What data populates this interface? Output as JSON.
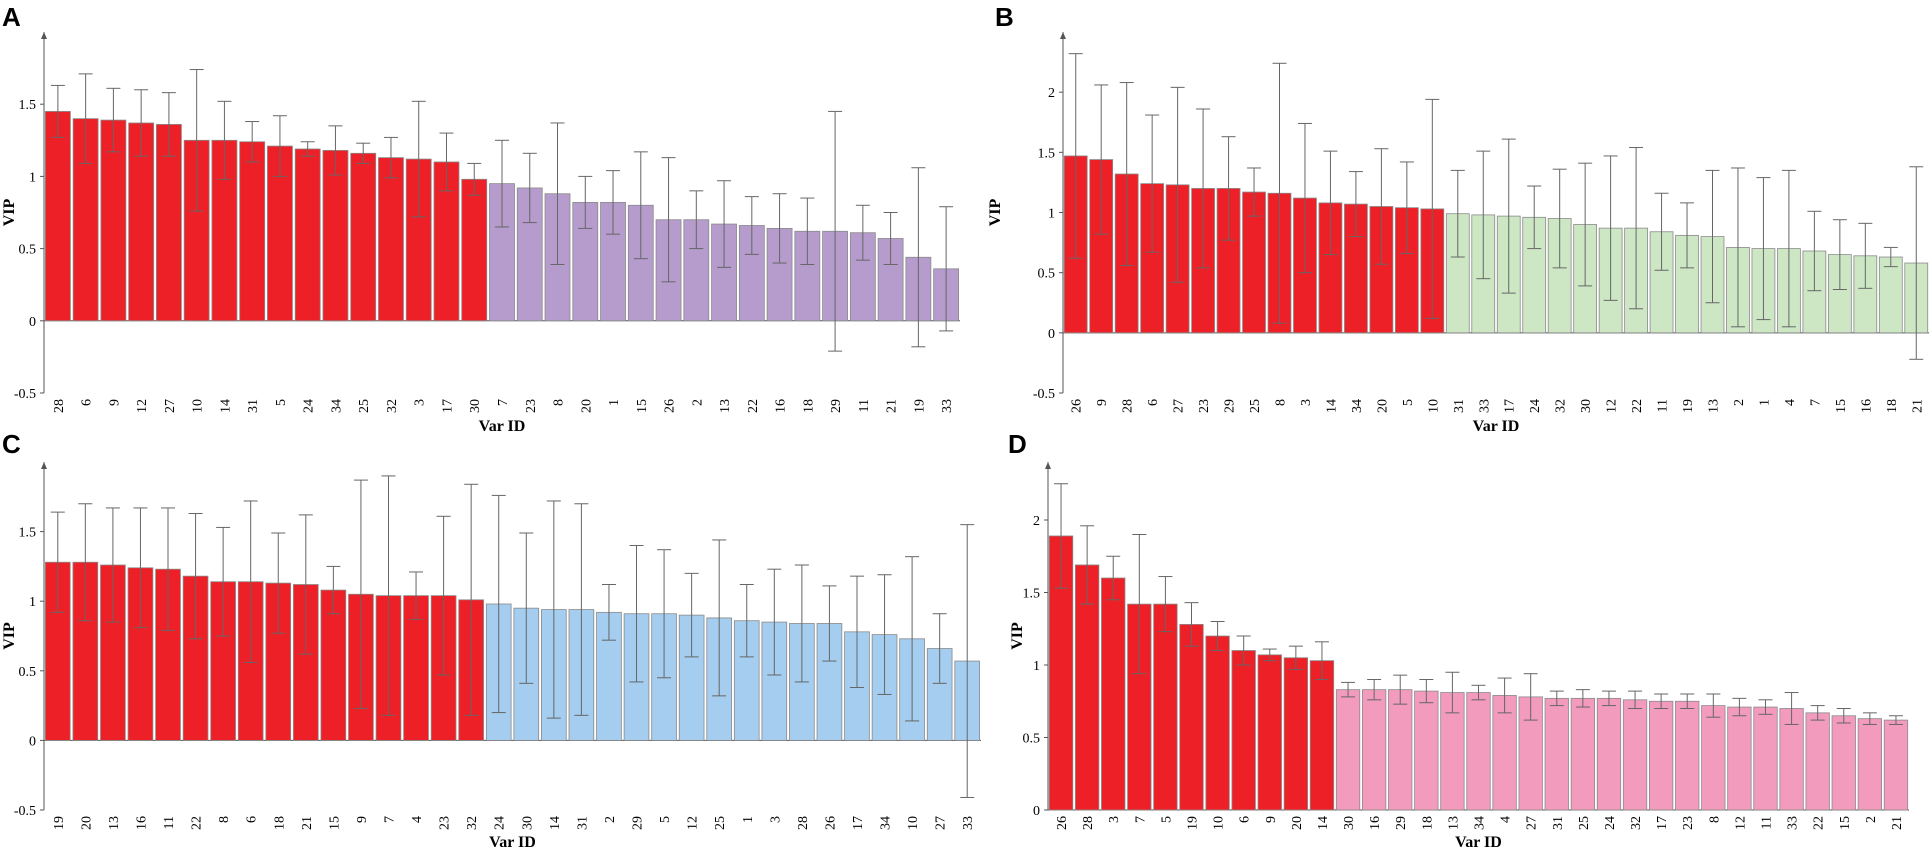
{
  "colors": {
    "highlight": "#ee2027",
    "A": "#b59ccc",
    "B": "#cde7c5",
    "C": "#a4cdef",
    "D": "#f29bbd"
  },
  "chart_data": [
    {
      "panel": "A",
      "type": "bar",
      "xlabel": "Var ID",
      "ylabel": "VIP",
      "ylim": [
        -0.5,
        2.0
      ],
      "yticks": [
        -0.5,
        0,
        0.5,
        1,
        1.5
      ],
      "highlight_count": 16,
      "categories": [
        "28",
        "6",
        "9",
        "12",
        "27",
        "10",
        "14",
        "31",
        "5",
        "24",
        "34",
        "25",
        "32",
        "3",
        "17",
        "30",
        "7",
        "23",
        "8",
        "20",
        "1",
        "15",
        "26",
        "2",
        "13",
        "22",
        "16",
        "18",
        "29",
        "11",
        "21",
        "19",
        "33"
      ],
      "values": [
        1.45,
        1.4,
        1.39,
        1.37,
        1.36,
        1.25,
        1.25,
        1.24,
        1.21,
        1.19,
        1.18,
        1.16,
        1.13,
        1.12,
        1.1,
        0.98,
        0.95,
        0.92,
        0.88,
        0.82,
        0.82,
        0.8,
        0.7,
        0.7,
        0.67,
        0.66,
        0.64,
        0.62,
        0.62,
        0.61,
        0.57,
        0.44,
        0.36
      ],
      "errors": [
        0.18,
        0.31,
        0.22,
        0.23,
        0.22,
        0.49,
        0.27,
        0.14,
        0.21,
        0.05,
        0.17,
        0.07,
        0.14,
        0.4,
        0.2,
        0.11,
        0.3,
        0.24,
        0.49,
        0.18,
        0.22,
        0.37,
        0.43,
        0.2,
        0.3,
        0.2,
        0.24,
        0.23,
        0.83,
        0.19,
        0.18,
        0.62,
        0.43
      ]
    },
    {
      "panel": "B",
      "type": "bar",
      "xlabel": "Var ID",
      "ylabel": "VIP",
      "ylim": [
        -0.5,
        2.5
      ],
      "yticks": [
        -0.5,
        0,
        0.5,
        1,
        1.5,
        2
      ],
      "highlight_count": 15,
      "categories": [
        "26",
        "9",
        "28",
        "6",
        "27",
        "23",
        "29",
        "25",
        "8",
        "3",
        "14",
        "34",
        "20",
        "5",
        "10",
        "31",
        "33",
        "17",
        "24",
        "32",
        "30",
        "12",
        "22",
        "11",
        "19",
        "13",
        "2",
        "1",
        "4",
        "7",
        "15",
        "16",
        "18",
        "21"
      ],
      "values": [
        1.47,
        1.44,
        1.32,
        1.24,
        1.23,
        1.2,
        1.2,
        1.17,
        1.16,
        1.12,
        1.08,
        1.07,
        1.05,
        1.04,
        1.03,
        0.99,
        0.98,
        0.97,
        0.96,
        0.95,
        0.9,
        0.87,
        0.87,
        0.84,
        0.81,
        0.8,
        0.71,
        0.7,
        0.7,
        0.68,
        0.65,
        0.64,
        0.63,
        0.58
      ],
      "errors": [
        0.85,
        0.62,
        0.76,
        0.57,
        0.81,
        0.66,
        0.43,
        0.2,
        1.08,
        0.62,
        0.43,
        0.27,
        0.48,
        0.38,
        0.91,
        0.36,
        0.53,
        0.64,
        0.26,
        0.41,
        0.51,
        0.6,
        0.67,
        0.32,
        0.27,
        0.55,
        0.66,
        0.59,
        0.65,
        0.33,
        0.29,
        0.27,
        0.08,
        0.8
      ]
    },
    {
      "panel": "C",
      "type": "bar",
      "xlabel": "Var ID",
      "ylabel": "VIP",
      "ylim": [
        -0.5,
        2.0
      ],
      "yticks": [
        -0.5,
        0,
        0.5,
        1,
        1.5
      ],
      "highlight_count": 16,
      "categories": [
        "19",
        "20",
        "13",
        "16",
        "11",
        "22",
        "8",
        "6",
        "18",
        "21",
        "15",
        "9",
        "7",
        "4",
        "23",
        "32",
        "24",
        "30",
        "14",
        "31",
        "2",
        "29",
        "5",
        "12",
        "25",
        "1",
        "3",
        "28",
        "26",
        "17",
        "34",
        "10",
        "27",
        "33"
      ],
      "values": [
        1.28,
        1.28,
        1.26,
        1.24,
        1.23,
        1.18,
        1.14,
        1.14,
        1.13,
        1.12,
        1.08,
        1.05,
        1.04,
        1.04,
        1.04,
        1.01,
        0.98,
        0.95,
        0.94,
        0.94,
        0.92,
        0.91,
        0.91,
        0.9,
        0.88,
        0.86,
        0.85,
        0.84,
        0.84,
        0.78,
        0.76,
        0.73,
        0.66,
        0.57
      ],
      "errors": [
        0.36,
        0.42,
        0.41,
        0.43,
        0.44,
        0.45,
        0.39,
        0.58,
        0.36,
        0.5,
        0.17,
        0.82,
        0.86,
        0.17,
        0.57,
        0.83,
        0.78,
        0.54,
        0.78,
        0.76,
        0.2,
        0.49,
        0.46,
        0.3,
        0.56,
        0.26,
        0.38,
        0.42,
        0.27,
        0.4,
        0.43,
        0.59,
        0.25,
        0.98
      ]
    },
    {
      "panel": "D",
      "type": "bar",
      "xlabel": "Var ID",
      "ylabel": "VIP",
      "ylim": [
        0,
        2.4
      ],
      "yticks": [
        0,
        0.5,
        1,
        1.5,
        2
      ],
      "highlight_count": 11,
      "categories": [
        "26",
        "28",
        "3",
        "7",
        "5",
        "19",
        "10",
        "6",
        "9",
        "20",
        "14",
        "30",
        "16",
        "29",
        "18",
        "13",
        "34",
        "4",
        "27",
        "31",
        "25",
        "24",
        "32",
        "17",
        "23",
        "8",
        "12",
        "11",
        "33",
        "22",
        "15",
        "2",
        "21"
      ],
      "values": [
        1.89,
        1.69,
        1.6,
        1.42,
        1.42,
        1.28,
        1.2,
        1.1,
        1.07,
        1.05,
        1.03,
        0.83,
        0.83,
        0.83,
        0.82,
        0.81,
        0.81,
        0.79,
        0.78,
        0.77,
        0.77,
        0.77,
        0.76,
        0.75,
        0.75,
        0.72,
        0.71,
        0.71,
        0.7,
        0.67,
        0.65,
        0.63,
        0.62
      ],
      "errors": [
        0.36,
        0.27,
        0.15,
        0.48,
        0.19,
        0.15,
        0.1,
        0.1,
        0.04,
        0.08,
        0.13,
        0.05,
        0.07,
        0.1,
        0.08,
        0.14,
        0.05,
        0.12,
        0.16,
        0.05,
        0.06,
        0.05,
        0.06,
        0.05,
        0.05,
        0.08,
        0.06,
        0.05,
        0.11,
        0.05,
        0.05,
        0.04,
        0.03
      ]
    }
  ]
}
